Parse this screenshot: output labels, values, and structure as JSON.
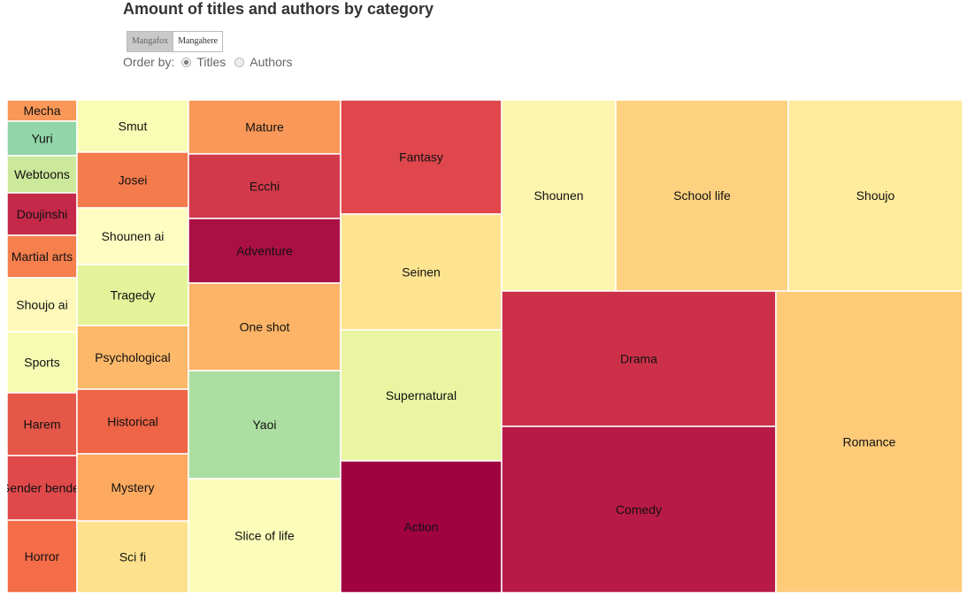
{
  "title": "Amount of titles and authors by category",
  "source_toggle": {
    "options": [
      "Mangafox",
      "Mangahere"
    ],
    "selected": "Mangafox"
  },
  "order_by": {
    "label": "Order by:",
    "options": [
      "Titles",
      "Authors"
    ],
    "selected": "Titles"
  },
  "chart_data": {
    "type": "treemap",
    "title": "Amount of titles and authors by category",
    "items": [
      {
        "name": "Mecha",
        "color": "#f99858"
      },
      {
        "name": "Yuri",
        "color": "#91d5a8"
      },
      {
        "name": "Webtoons",
        "color": "#cce89a"
      },
      {
        "name": "Doujinshi",
        "color": "#c5294a"
      },
      {
        "name": "Martial arts",
        "color": "#f67f4e"
      },
      {
        "name": "Shoujo ai",
        "color": "#fff8ba"
      },
      {
        "name": "Sports",
        "color": "#f6fbb3"
      },
      {
        "name": "Harem",
        "color": "#e55749"
      },
      {
        "name": "Gender bender",
        "color": "#e0494a"
      },
      {
        "name": "Horror",
        "color": "#f46c48"
      },
      {
        "name": "Smut",
        "color": "#f9fcb4"
      },
      {
        "name": "Josei",
        "color": "#f47b4c"
      },
      {
        "name": "Shounen ai",
        "color": "#fffec2"
      },
      {
        "name": "Tragedy",
        "color": "#e4f39a"
      },
      {
        "name": "Psychological",
        "color": "#fdb869"
      },
      {
        "name": "Historical",
        "color": "#ee6446"
      },
      {
        "name": "Mystery",
        "color": "#fdaa60"
      },
      {
        "name": "Sci fi",
        "color": "#fee18d"
      },
      {
        "name": "Mature",
        "color": "#f99858"
      },
      {
        "name": "Ecchi",
        "color": "#d23a4b"
      },
      {
        "name": "Adventure",
        "color": "#ab1044"
      },
      {
        "name": "One shot",
        "color": "#fdb466"
      },
      {
        "name": "Yaoi",
        "color": "#acdea1"
      },
      {
        "name": "Slice of life",
        "color": "#fbfdb8"
      },
      {
        "name": "Fantasy",
        "color": "#df474d"
      },
      {
        "name": "Seinen",
        "color": "#fee491"
      },
      {
        "name": "Supernatural",
        "color": "#e9f5a1"
      },
      {
        "name": "Action",
        "color": "#a00340"
      },
      {
        "name": "Shounen",
        "color": "#fef5ae"
      },
      {
        "name": "School life",
        "color": "#fed181"
      },
      {
        "name": "Shoujo",
        "color": "#feeb9c"
      },
      {
        "name": "Drama",
        "color": "#cc3049"
      },
      {
        "name": "Comedy",
        "color": "#b81a48"
      },
      {
        "name": "Romance",
        "color": "#fecb79"
      }
    ]
  }
}
